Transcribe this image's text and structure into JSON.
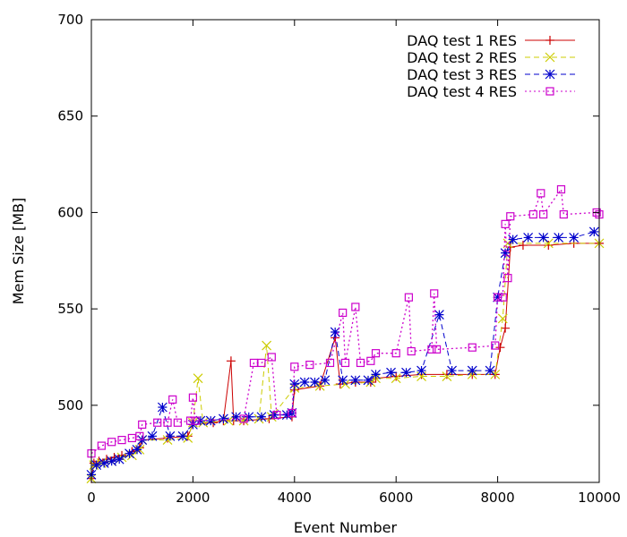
{
  "chart_data": {
    "type": "line",
    "xlabel": "Event Number",
    "ylabel": "Mem Size [MB]",
    "xlim": [
      0,
      10000
    ],
    "ylim": [
      460,
      700
    ],
    "xticks": [
      0,
      2000,
      4000,
      6000,
      8000,
      10000
    ],
    "yticks": [
      500,
      550,
      600,
      650,
      700
    ],
    "grid": false,
    "legend_position": "top-right",
    "series": [
      {
        "name": "DAQ test 1 RES",
        "color": "#cc0000",
        "marker": "plus",
        "dash": "solid",
        "points": [
          [
            0,
            462
          ],
          [
            50,
            470
          ],
          [
            150,
            471
          ],
          [
            300,
            472
          ],
          [
            450,
            473
          ],
          [
            600,
            474
          ],
          [
            800,
            476
          ],
          [
            950,
            478
          ],
          [
            1000,
            482
          ],
          [
            1500,
            483
          ],
          [
            1900,
            484
          ],
          [
            2000,
            490
          ],
          [
            2400,
            491
          ],
          [
            2600,
            492
          ],
          [
            2750,
            523
          ],
          [
            2800,
            492
          ],
          [
            3000,
            492
          ],
          [
            3500,
            493
          ],
          [
            3950,
            494
          ],
          [
            4000,
            508
          ],
          [
            4500,
            510
          ],
          [
            4800,
            535
          ],
          [
            4900,
            511
          ],
          [
            5200,
            512
          ],
          [
            5500,
            512
          ],
          [
            5600,
            514
          ],
          [
            6000,
            515
          ],
          [
            6500,
            516
          ],
          [
            7000,
            516
          ],
          [
            7500,
            516
          ],
          [
            7950,
            516
          ],
          [
            8050,
            530
          ],
          [
            8150,
            540
          ],
          [
            8250,
            582
          ],
          [
            8500,
            583
          ],
          [
            9000,
            583
          ],
          [
            9500,
            584
          ],
          [
            10000,
            584
          ]
        ]
      },
      {
        "name": "DAQ test 2 RES",
        "color": "#cccc00",
        "marker": "cross",
        "dash": "dash",
        "points": [
          [
            0,
            462
          ],
          [
            50,
            469
          ],
          [
            200,
            470
          ],
          [
            400,
            471
          ],
          [
            600,
            473
          ],
          [
            800,
            474
          ],
          [
            950,
            477
          ],
          [
            1000,
            482
          ],
          [
            1500,
            482
          ],
          [
            1900,
            483
          ],
          [
            2000,
            491
          ],
          [
            2100,
            514
          ],
          [
            2200,
            491
          ],
          [
            2700,
            492
          ],
          [
            3000,
            492
          ],
          [
            3300,
            493
          ],
          [
            3450,
            531
          ],
          [
            3550,
            494
          ],
          [
            4000,
            509
          ],
          [
            4500,
            510
          ],
          [
            5000,
            511
          ],
          [
            5500,
            512
          ],
          [
            5600,
            514
          ],
          [
            6000,
            514
          ],
          [
            6500,
            515
          ],
          [
            7000,
            515
          ],
          [
            7500,
            516
          ],
          [
            7950,
            516
          ],
          [
            8100,
            545
          ],
          [
            8200,
            584
          ],
          [
            9000,
            584
          ],
          [
            10000,
            584
          ]
        ]
      },
      {
        "name": "DAQ test 3 RES",
        "color": "#0000cc",
        "marker": "star",
        "dash": "dash",
        "points": [
          [
            0,
            464
          ],
          [
            100,
            469
          ],
          [
            250,
            470
          ],
          [
            400,
            471
          ],
          [
            550,
            472
          ],
          [
            750,
            475
          ],
          [
            900,
            477
          ],
          [
            1000,
            482
          ],
          [
            1200,
            484
          ],
          [
            1400,
            499
          ],
          [
            1550,
            484
          ],
          [
            1800,
            484
          ],
          [
            2000,
            490
          ],
          [
            2150,
            492
          ],
          [
            2350,
            492
          ],
          [
            2600,
            493
          ],
          [
            2850,
            494
          ],
          [
            3100,
            494
          ],
          [
            3350,
            494
          ],
          [
            3600,
            495
          ],
          [
            3850,
            495
          ],
          [
            3950,
            496
          ],
          [
            4000,
            511
          ],
          [
            4200,
            512
          ],
          [
            4400,
            512
          ],
          [
            4600,
            513
          ],
          [
            4800,
            538
          ],
          [
            4950,
            513
          ],
          [
            5200,
            513
          ],
          [
            5450,
            513
          ],
          [
            5600,
            516
          ],
          [
            5900,
            517
          ],
          [
            6200,
            517
          ],
          [
            6500,
            518
          ],
          [
            6850,
            547
          ],
          [
            7100,
            518
          ],
          [
            7500,
            518
          ],
          [
            7850,
            518
          ],
          [
            8000,
            556
          ],
          [
            8150,
            579
          ],
          [
            8300,
            586
          ],
          [
            8600,
            587
          ],
          [
            8900,
            587
          ],
          [
            9200,
            587
          ],
          [
            9500,
            587
          ],
          [
            9900,
            590
          ]
        ]
      },
      {
        "name": "DAQ test 4 RES",
        "color": "#cc00cc",
        "marker": "square",
        "dash": "dot",
        "points": [
          [
            0,
            475
          ],
          [
            200,
            479
          ],
          [
            400,
            481
          ],
          [
            600,
            482
          ],
          [
            800,
            483
          ],
          [
            950,
            484
          ],
          [
            1000,
            490
          ],
          [
            1300,
            491
          ],
          [
            1500,
            491
          ],
          [
            1600,
            503
          ],
          [
            1700,
            491
          ],
          [
            1950,
            492
          ],
          [
            2000,
            504
          ],
          [
            2050,
            492
          ],
          [
            3000,
            493
          ],
          [
            3200,
            522
          ],
          [
            3350,
            522
          ],
          [
            3550,
            525
          ],
          [
            3650,
            495
          ],
          [
            3950,
            496
          ],
          [
            4000,
            520
          ],
          [
            4300,
            521
          ],
          [
            4700,
            522
          ],
          [
            4950,
            548
          ],
          [
            5000,
            522
          ],
          [
            5200,
            551
          ],
          [
            5300,
            522
          ],
          [
            5500,
            523
          ],
          [
            5600,
            527
          ],
          [
            6000,
            527
          ],
          [
            6250,
            556
          ],
          [
            6300,
            528
          ],
          [
            6700,
            529
          ],
          [
            6750,
            558
          ],
          [
            6800,
            529
          ],
          [
            7500,
            530
          ],
          [
            7950,
            531
          ],
          [
            8000,
            556
          ],
          [
            8100,
            556
          ],
          [
            8150,
            594
          ],
          [
            8200,
            566
          ],
          [
            8250,
            598
          ],
          [
            8700,
            599
          ],
          [
            8850,
            610
          ],
          [
            8900,
            599
          ],
          [
            9250,
            612
          ],
          [
            9300,
            599
          ],
          [
            9950,
            600
          ],
          [
            10000,
            599
          ]
        ]
      }
    ]
  }
}
